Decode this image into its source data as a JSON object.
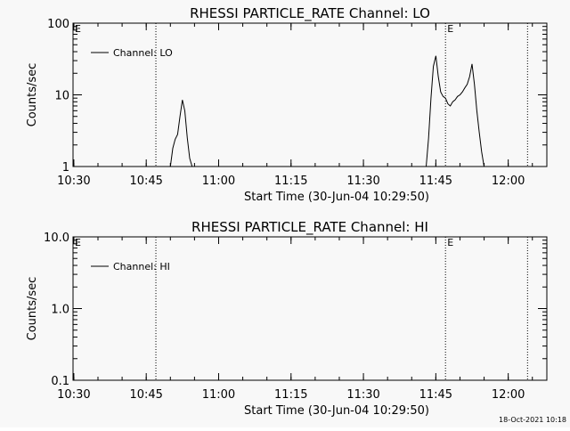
{
  "chart_data": [
    {
      "type": "line",
      "title": "RHESSI PARTICLE_RATE Channel: LO",
      "xlabel": "Start Time (30-Jun-04 10:29:50)",
      "ylabel": "Counts/sec",
      "yscale": "log",
      "ylim": [
        1,
        100
      ],
      "xlim": [
        "10:29:50",
        "12:08:00"
      ],
      "x_ticks": [
        "10:30",
        "10:45",
        "11:00",
        "11:15",
        "11:30",
        "11:45",
        "12:00"
      ],
      "y_ticks": [
        "1",
        "10",
        "100"
      ],
      "legend": {
        "entries": [
          "Channel: LO"
        ],
        "position": "top-left"
      },
      "markers": [
        {
          "time": "10:29:50",
          "label": "E"
        },
        {
          "time": "10:47:00",
          "label": ""
        },
        {
          "time": "11:47:00",
          "label": "E"
        },
        {
          "time": "12:04:00",
          "label": ""
        }
      ],
      "series": [
        {
          "name": "Channel: LO",
          "x": [
            "10:50:00",
            "10:50:30",
            "10:51:00",
            "10:51:30",
            "10:52:00",
            "10:52:30",
            "10:53:00",
            "10:53:30",
            "10:54:00",
            "10:54:30",
            "10:55:00",
            "11:43:00",
            "11:43:30",
            "11:44:00",
            "11:44:30",
            "11:45:00",
            "11:45:30",
            "11:46:00",
            "11:46:30",
            "11:47:00",
            "11:47:30",
            "11:48:00",
            "11:48:30",
            "11:49:00",
            "11:49:30",
            "11:50:00",
            "11:50:30",
            "11:51:00",
            "11:51:30",
            "11:52:00",
            "11:52:30",
            "11:53:00",
            "11:53:30",
            "11:54:00",
            "11:54:30",
            "11:55:00",
            "11:55:30"
          ],
          "y": [
            1.0,
            1.8,
            2.4,
            2.8,
            5.0,
            8.5,
            6.0,
            2.5,
            1.3,
            1.0,
            1.0,
            1.0,
            2.5,
            9.0,
            25.0,
            35.0,
            18.0,
            11.0,
            9.5,
            9.0,
            7.5,
            7.0,
            8.0,
            8.5,
            9.5,
            10.0,
            11.0,
            12.5,
            14.0,
            18.0,
            27.0,
            14.0,
            6.0,
            3.0,
            1.6,
            1.0,
            1.0
          ]
        }
      ]
    },
    {
      "type": "line",
      "title": "RHESSI PARTICLE_RATE Channel: HI",
      "xlabel": "Start Time (30-Jun-04 10:29:50)",
      "ylabel": "Counts/sec",
      "yscale": "log",
      "ylim": [
        0.1,
        10
      ],
      "xlim": [
        "10:29:50",
        "12:08:00"
      ],
      "x_ticks": [
        "10:30",
        "10:45",
        "11:00",
        "11:15",
        "11:30",
        "11:45",
        "12:00"
      ],
      "y_ticks": [
        "0.1",
        "1.0",
        "10.0"
      ],
      "legend": {
        "entries": [
          "Channel: HI"
        ],
        "position": "top-left"
      },
      "markers": [
        {
          "time": "10:29:50",
          "label": "E"
        },
        {
          "time": "10:47:00",
          "label": ""
        },
        {
          "time": "11:47:00",
          "label": "E"
        },
        {
          "time": "12:04:00",
          "label": ""
        }
      ],
      "series": [
        {
          "name": "Channel: HI",
          "x": [],
          "y": []
        }
      ]
    }
  ],
  "footer": {
    "timestamp": "18-Oct-2021 10:18"
  }
}
